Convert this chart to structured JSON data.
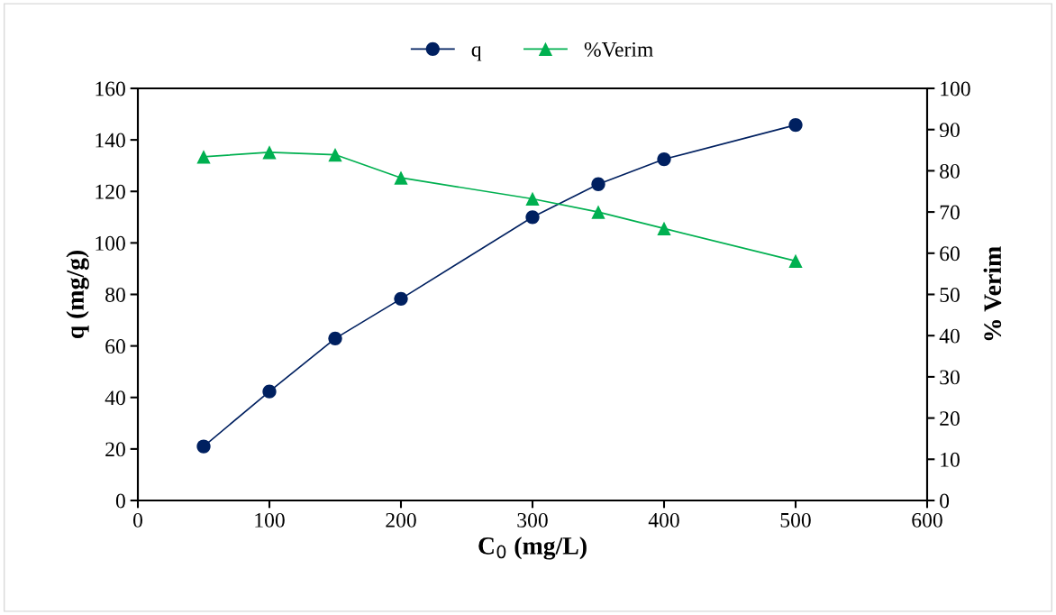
{
  "chart_data": {
    "type": "line",
    "xlabel": "C$_{0}$ (mg/L)",
    "ylabel": "q (mg/g)",
    "y2label": "% Verim",
    "x": [
      50,
      100,
      150,
      200,
      300,
      350,
      400,
      500
    ],
    "series": [
      {
        "name": "q",
        "color": "#002060",
        "marker": "circle",
        "values": [
          21.0,
          42.3,
          62.9,
          78.3,
          110,
          122.8,
          132.5,
          145.8
        ]
      },
      {
        "name": "%Verim",
        "color": "#00b050",
        "marker": "triangle",
        "axis": "y2",
        "values": [
          83.4,
          84.5,
          83.9,
          78.3,
          73.2,
          70.0,
          66.0,
          58.1
        ]
      }
    ],
    "xlim": [
      0,
      600
    ],
    "xticks": [
      0,
      100,
      200,
      300,
      400,
      500,
      600
    ],
    "ylim": [
      0,
      160
    ],
    "yticks": [
      0,
      20,
      40,
      60,
      80,
      100,
      120,
      140,
      160
    ],
    "y2lim": [
      0,
      100
    ],
    "y2ticks": [
      0,
      10,
      20,
      30,
      40,
      50,
      60,
      70,
      80,
      90,
      100
    ],
    "legend": "top",
    "grid": false
  }
}
